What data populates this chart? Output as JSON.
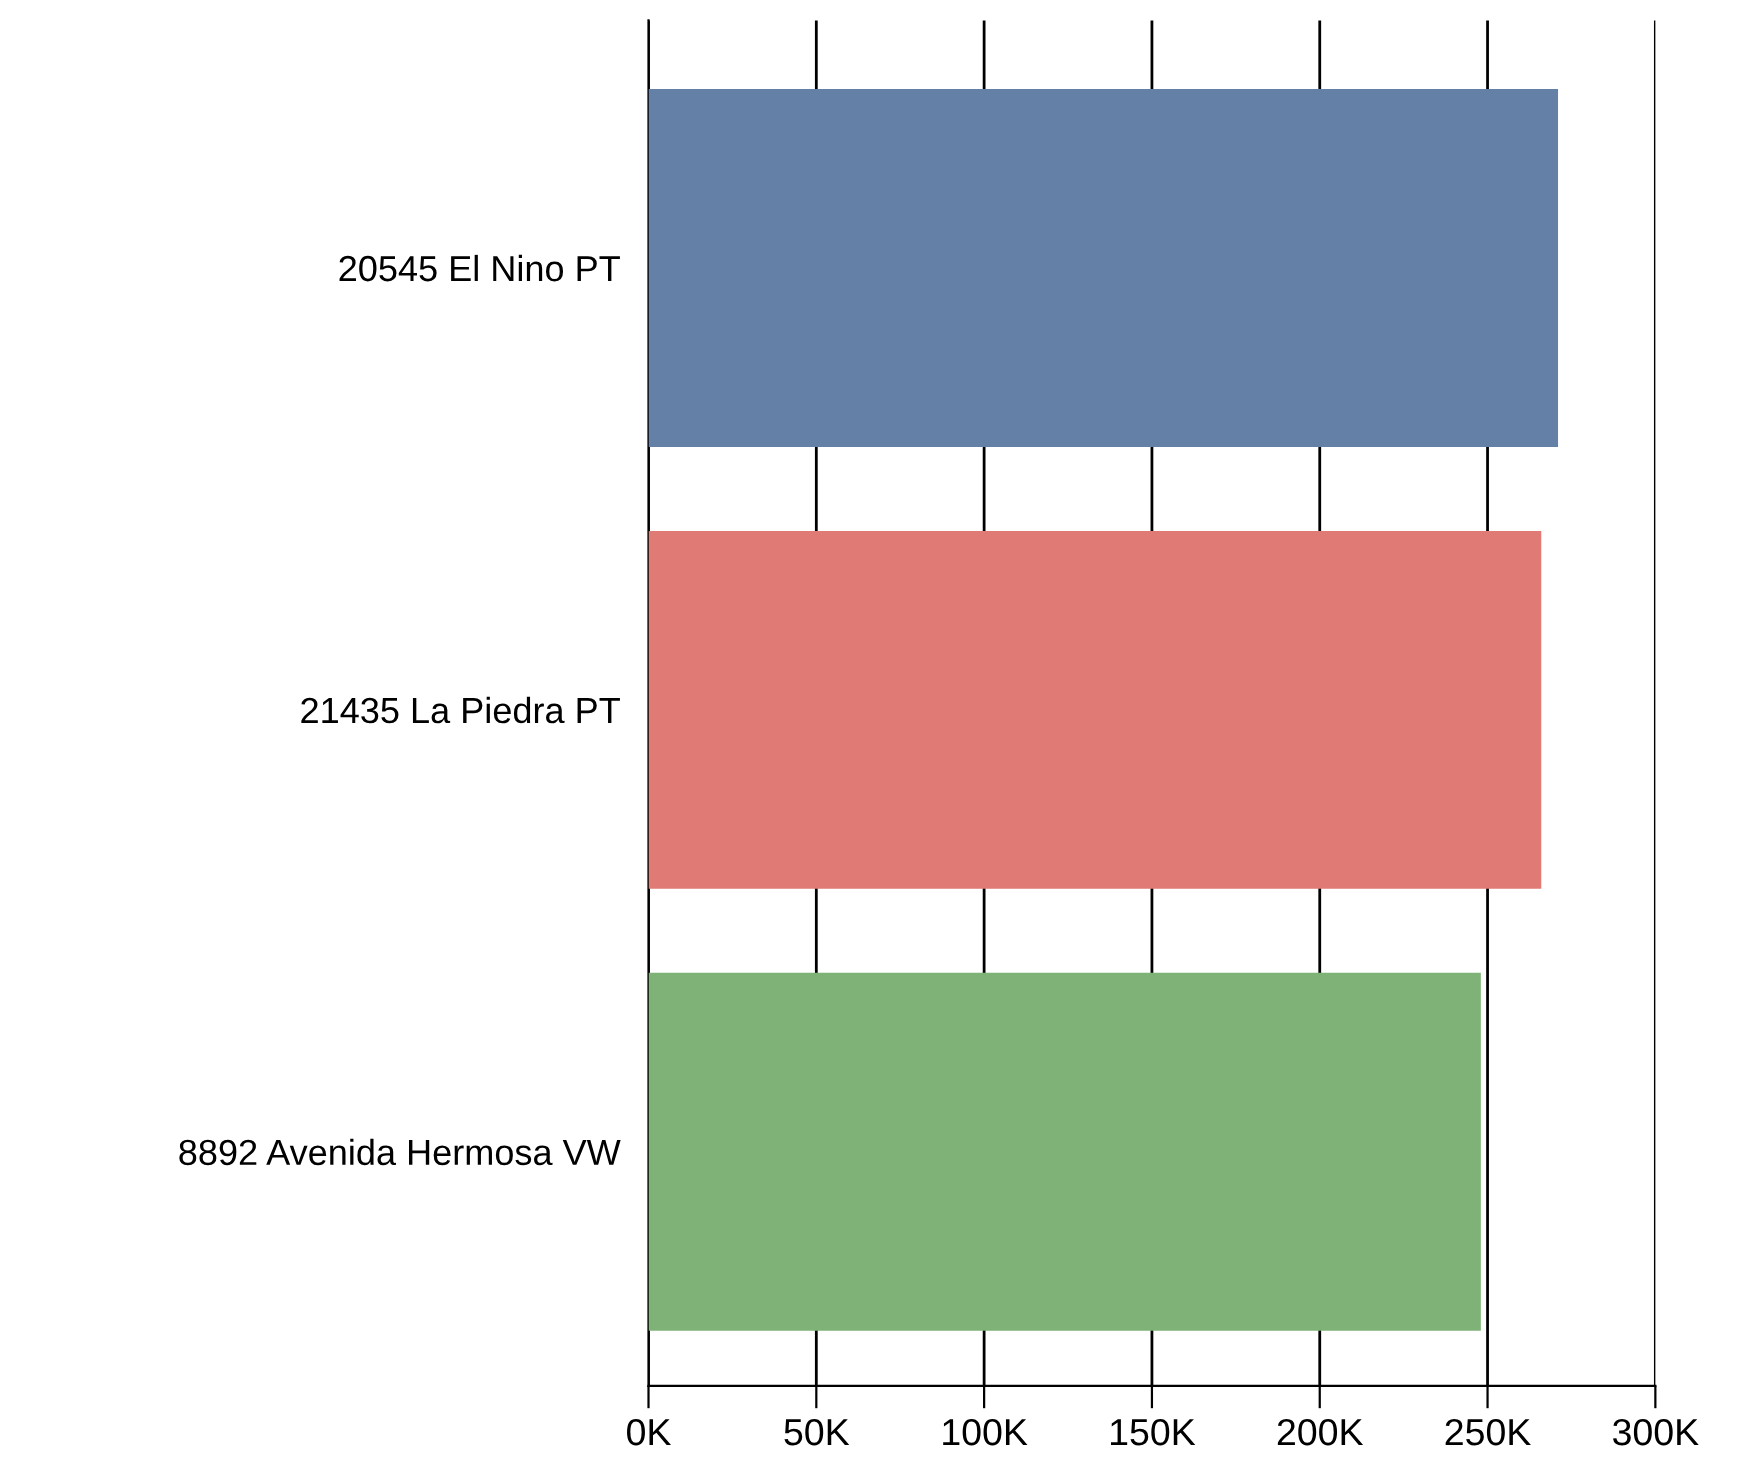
{
  "chart_data": {
    "type": "bar",
    "orientation": "horizontal",
    "categories": [
      "20545 El Nino PT",
      "21435 La Piedra PT",
      "8892 Avenida Hermosa VW"
    ],
    "values": [
      271000,
      266000,
      248000
    ],
    "colors": [
      "#6480a6",
      "#df7a74",
      "#7eb276"
    ],
    "xlim": [
      0,
      300000
    ],
    "xticks": [
      {
        "value": 0,
        "label": "0K"
      },
      {
        "value": 50000,
        "label": "50K"
      },
      {
        "value": 100000,
        "label": "100K"
      },
      {
        "value": 150000,
        "label": "150K"
      },
      {
        "value": 200000,
        "label": "200K"
      },
      {
        "value": 250000,
        "label": "250K"
      },
      {
        "value": 300000,
        "label": "300K"
      }
    ],
    "grid": "x",
    "legend": false
  }
}
